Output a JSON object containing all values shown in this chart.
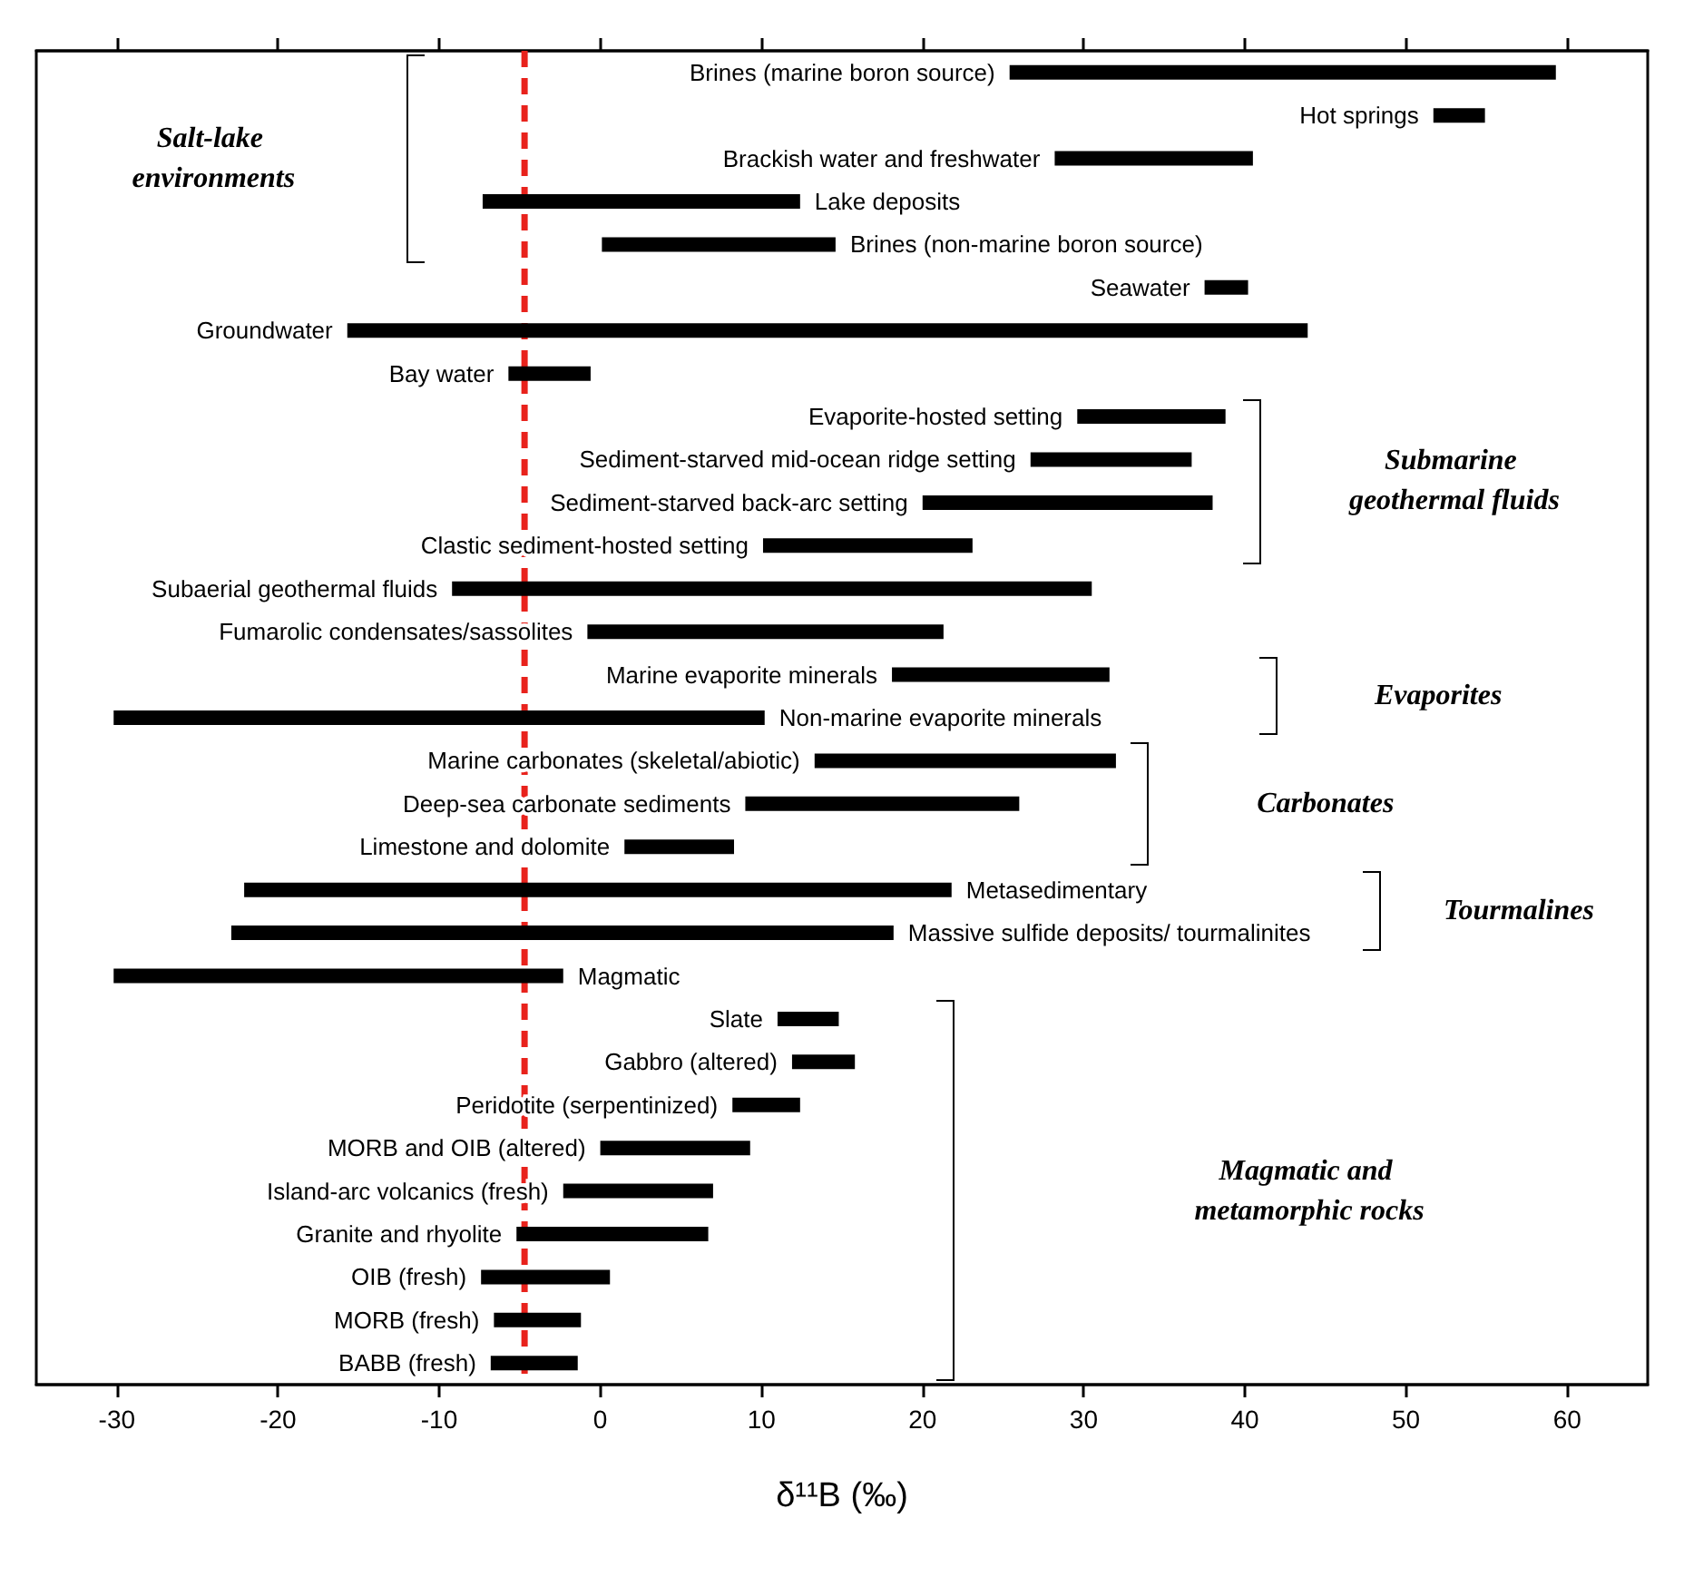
{
  "chart_data": {
    "type": "bar",
    "orientation": "horizontal",
    "xlabel": "δ¹¹B (‰)",
    "color": "#000000",
    "xlim": [
      -35,
      65
    ],
    "xticks": [
      -30,
      -20,
      -10,
      0,
      10,
      20,
      30,
      40,
      50,
      60
    ],
    "tick_labels": "x",
    "grid": false,
    "categories": [
      "Brines (marine boron source)",
      "Hot springs",
      "Brackish water and freshwater",
      "Lake deposits",
      "Brines (non-marine boron source)",
      "Seawater",
      "Groundwater",
      "Bay water",
      "Evaporite-hosted setting",
      "Sediment-starved mid-ocean ridge setting",
      "Sediment-starved back-arc setting",
      "Clastic sediment-hosted setting",
      "Subaerial geothermal fluids",
      "Fumarolic condensates/sassolites",
      "Marine evaporite minerals",
      "Non-marine evaporite minerals",
      "Marine carbonates (skeletal/abiotic)",
      "Deep-sea carbonate sediments",
      "Limestone and dolomite",
      "Metasedimentary",
      "Massive sulfide deposits/ tourmalinites",
      "Magmatic",
      "Slate",
      "Gabbro (altered)",
      "Peridotite (serpentinized)",
      "MORB and OIB (altered)",
      "Island-arc volcanics (fresh)",
      "Granite and rhyolite",
      "OIB (fresh)",
      "MORB (fresh)",
      "BABB (fresh)"
    ],
    "base": [
      25.4,
      51.7,
      28.2,
      -7.3,
      0.1,
      37.5,
      -15.7,
      -5.7,
      29.6,
      26.7,
      20.0,
      10.1,
      -9.2,
      -0.8,
      18.1,
      -30.2,
      13.3,
      9.0,
      1.5,
      -22.1,
      -22.9,
      -30.2,
      11.0,
      11.9,
      8.2,
      0.0,
      -2.3,
      -5.2,
      -7.4,
      -6.6,
      -6.8
    ],
    "values": [
      33.9,
      3.2,
      12.3,
      19.7,
      14.5,
      2.7,
      59.6,
      5.1,
      9.2,
      10.0,
      18.0,
      13.0,
      39.7,
      22.1,
      13.5,
      40.4,
      18.7,
      17.0,
      6.8,
      43.9,
      41.1,
      27.9,
      3.8,
      3.9,
      4.2,
      9.3,
      9.3,
      11.9,
      8.0,
      5.4,
      5.4
    ],
    "ref_lines": [
      {
        "axis": "x",
        "value": -4.7,
        "color": "#e8221c",
        "line_style": "dashed"
      }
    ],
    "annotations": [
      "Salt-lake environments",
      "Submarine geothermal fluids",
      "Evaporites",
      "Carbonates",
      "Tourmalines",
      "Magmatic and metamorphic rocks"
    ]
  }
}
